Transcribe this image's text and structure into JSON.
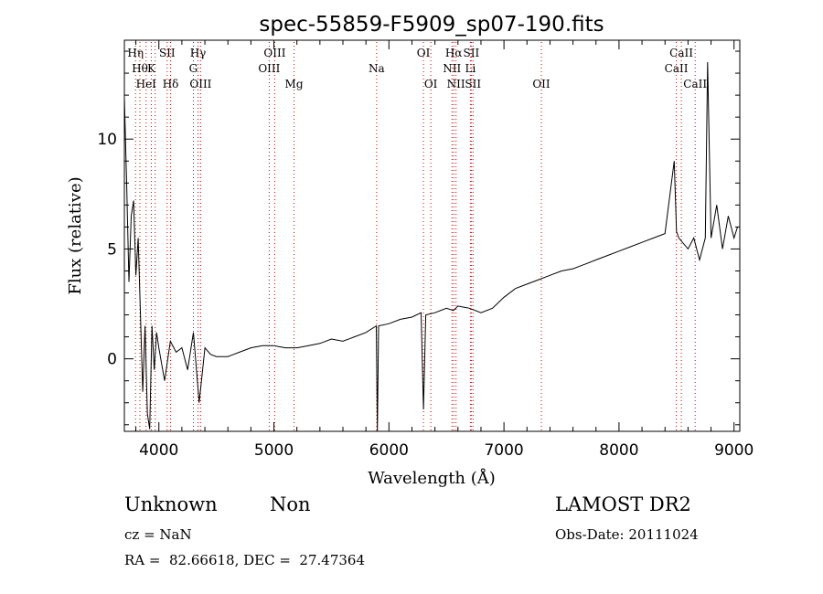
{
  "chart_data": {
    "type": "line",
    "title": "spec-55859-F5909_sp07-190.fits",
    "xlabel": "Wavelength (Å)",
    "ylabel": "Flux (relative)",
    "xlim": [
      3700,
      9050
    ],
    "ylim": [
      -3.3,
      14.5
    ],
    "x_ticks": [
      4000,
      5000,
      6000,
      7000,
      8000,
      9000
    ],
    "y_ticks": [
      0,
      5,
      10
    ],
    "grid": false,
    "line_color": "#000000",
    "marker_color": "#cc0000",
    "series": [
      {
        "x": [
          3700,
          3720,
          3740,
          3760,
          3780,
          3800,
          3820,
          3840,
          3860,
          3880,
          3900,
          3920,
          3940,
          3960,
          3980,
          4000,
          4050,
          4100,
          4150,
          4200,
          4250,
          4300,
          4350,
          4400,
          4450,
          4500,
          4600,
          4700,
          4800,
          4900,
          5000,
          5100,
          5200,
          5300,
          5400,
          5500,
          5600,
          5700,
          5800,
          5890,
          5900,
          5910,
          6000,
          6100,
          6200,
          6280,
          6300,
          6320,
          6400,
          6500,
          6560,
          6600,
          6700,
          6800,
          6900,
          7000,
          7100,
          7200,
          7300,
          7400,
          7500,
          7600,
          7700,
          7800,
          7900,
          8000,
          8100,
          8200,
          8300,
          8400,
          8480,
          8500,
          8520,
          8600,
          8650,
          8700,
          8750,
          8770,
          8800,
          8850,
          8900,
          8950,
          9000,
          9030
        ],
        "y": [
          11.9,
          8.0,
          3.5,
          6.5,
          7.2,
          3.8,
          5.5,
          2.0,
          -1.5,
          1.5,
          -2.5,
          -3.2,
          1.5,
          -0.5,
          1.2,
          0.5,
          -1.0,
          0.8,
          0.3,
          0.5,
          -0.5,
          1.2,
          -2.0,
          0.5,
          0.2,
          0.1,
          0.1,
          0.3,
          0.5,
          0.6,
          0.6,
          0.5,
          0.5,
          0.6,
          0.7,
          0.9,
          0.8,
          1.0,
          1.2,
          1.5,
          -3.3,
          1.5,
          1.6,
          1.8,
          1.9,
          2.1,
          -2.3,
          2.0,
          2.1,
          2.3,
          2.2,
          2.4,
          2.3,
          2.1,
          2.3,
          2.8,
          3.2,
          3.4,
          3.6,
          3.8,
          4.0,
          4.1,
          4.3,
          4.5,
          4.7,
          4.9,
          5.1,
          5.3,
          5.5,
          5.7,
          9.0,
          5.8,
          5.5,
          5.0,
          5.5,
          4.5,
          5.5,
          13.5,
          5.5,
          7.0,
          5.0,
          6.5,
          5.5,
          6.0
        ]
      }
    ],
    "line_markers": [
      {
        "wavelength": 3797,
        "label": "Hη",
        "row": 1
      },
      {
        "wavelength": 3835,
        "label": "Hθ",
        "row": 2
      },
      {
        "wavelength": 3889,
        "label": "HeI",
        "row": 3
      },
      {
        "wavelength": 3934,
        "label": "K",
        "row": 2
      },
      {
        "wavelength": 3968,
        "label": "",
        "row": 0
      },
      {
        "wavelength": 4072,
        "label": "SII",
        "row": 1
      },
      {
        "wavelength": 4102,
        "label": "Hδ",
        "row": 3
      },
      {
        "wavelength": 4300,
        "label": "G",
        "row": 2
      },
      {
        "wavelength": 4340,
        "label": "Hγ",
        "row": 1
      },
      {
        "wavelength": 4363,
        "label": "OIII",
        "row": 3
      },
      {
        "wavelength": 4959,
        "label": "OIII",
        "row": 2
      },
      {
        "wavelength": 5007,
        "label": "OIII",
        "row": 1
      },
      {
        "wavelength": 5175,
        "label": "Mg",
        "row": 3
      },
      {
        "wavelength": 5893,
        "label": "Na",
        "row": 2
      },
      {
        "wavelength": 6300,
        "label": "OI",
        "row": 1
      },
      {
        "wavelength": 6364,
        "label": "OI",
        "row": 3
      },
      {
        "wavelength": 6548,
        "label": "NII",
        "row": 2
      },
      {
        "wavelength": 6563,
        "label": "Hα",
        "row": 1
      },
      {
        "wavelength": 6583,
        "label": "NII",
        "row": 3
      },
      {
        "wavelength": 6708,
        "label": "Li",
        "row": 2
      },
      {
        "wavelength": 6716,
        "label": "SII",
        "row": 1
      },
      {
        "wavelength": 6731,
        "label": "SII",
        "row": 3
      },
      {
        "wavelength": 7325,
        "label": "OII",
        "row": 3
      },
      {
        "wavelength": 8498,
        "label": "CaII",
        "row": 2
      },
      {
        "wavelength": 8542,
        "label": "CaII",
        "row": 1
      },
      {
        "wavelength": 8662,
        "label": "CaII",
        "row": 3
      }
    ]
  },
  "footer": {
    "class_label": "Unknown",
    "subclass_label": "Non",
    "survey": "LAMOST DR2",
    "cz": "cz = NaN",
    "obs_date": "Obs-Date: 20111024",
    "coords": "RA =  82.66618, DEC =  27.47364"
  }
}
